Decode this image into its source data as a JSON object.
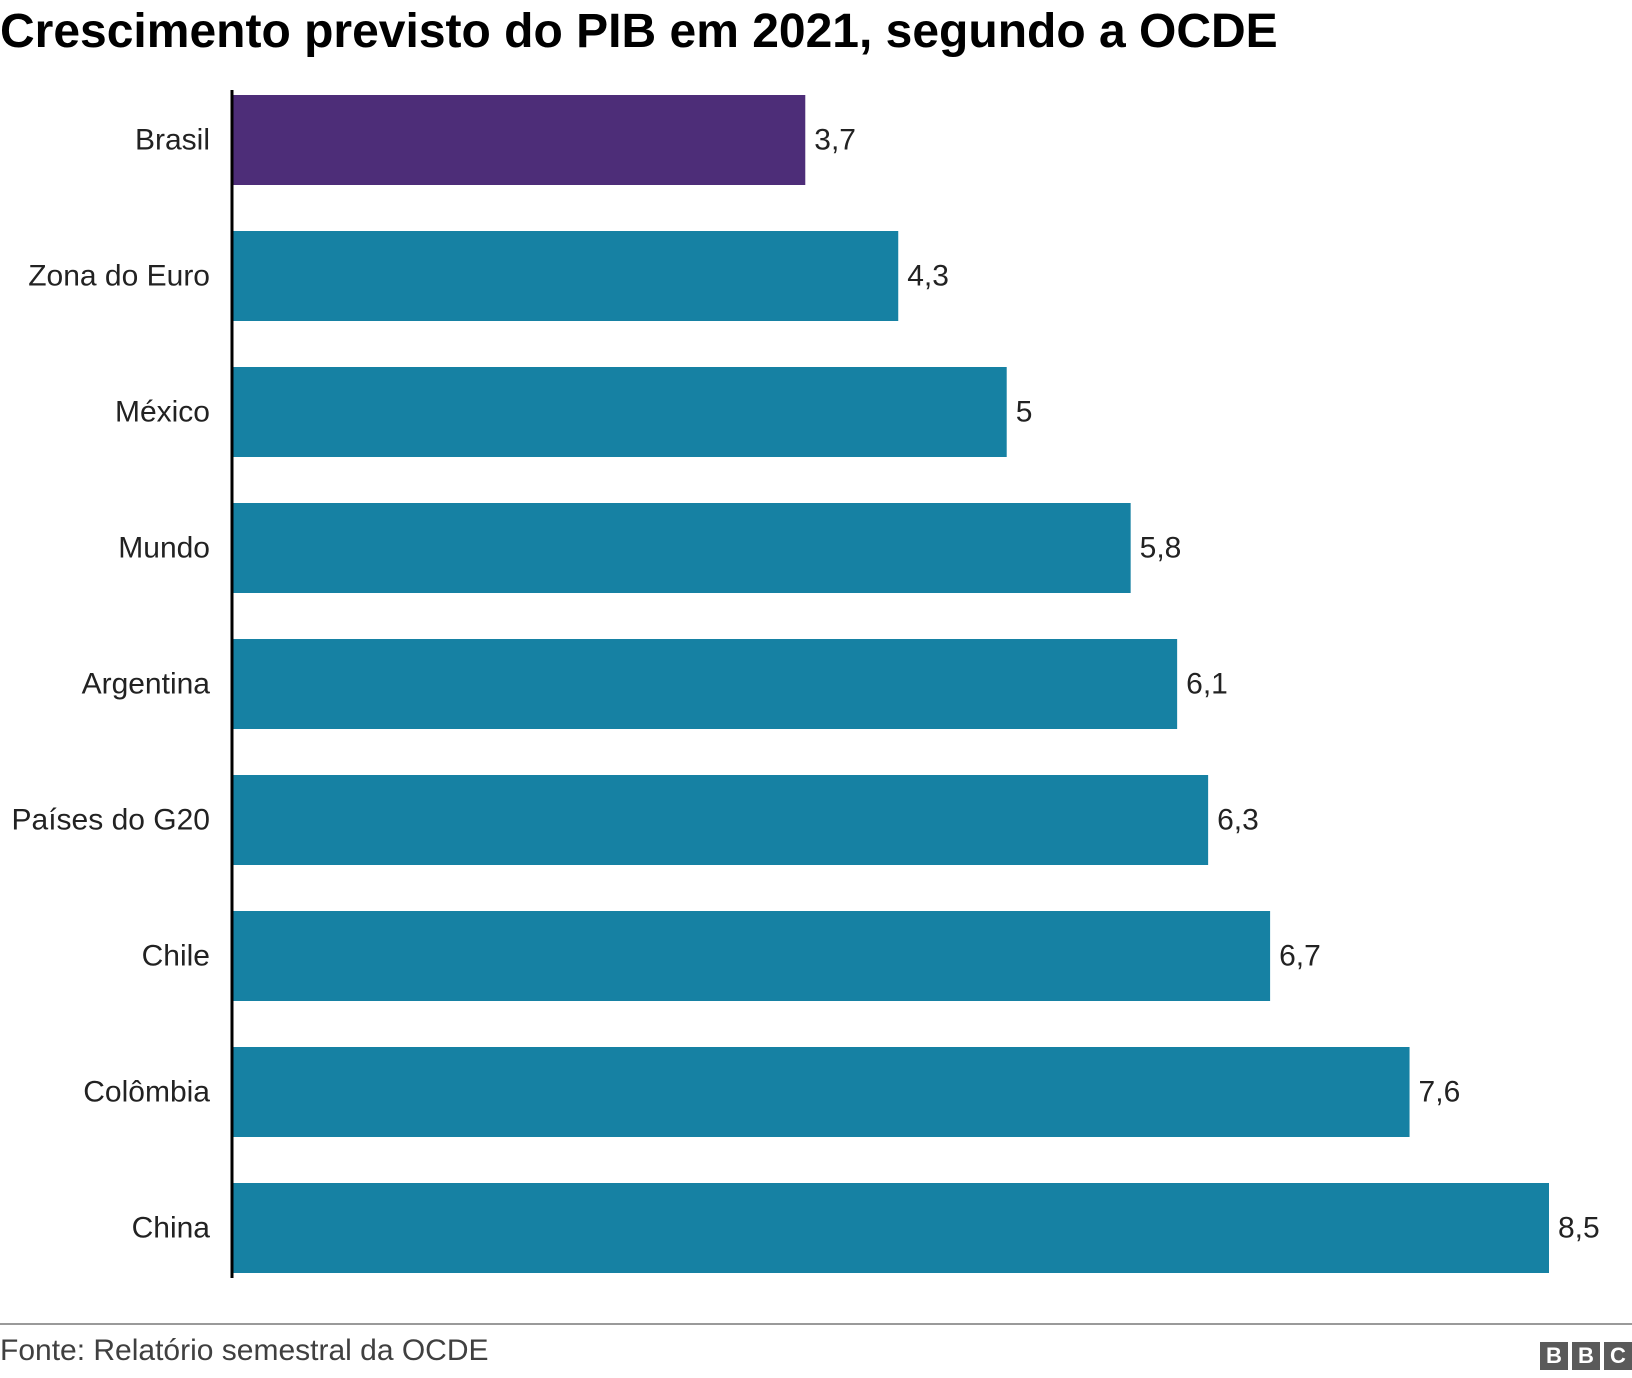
{
  "title": "Crescimento previsto do PIB em 2021, segundo a OCDE",
  "source": "Fonte: Relatório semestral da OCDE",
  "logo": {
    "letters": [
      "B",
      "B",
      "C"
    ]
  },
  "colors": {
    "highlight": "#4d2d78",
    "bar": "#1681a3",
    "axis": "#000000"
  },
  "chart_data": {
    "type": "bar",
    "orientation": "horizontal",
    "categories": [
      "Brasil",
      "Zona do Euro",
      "México",
      "Mundo",
      "Argentina",
      "Países do G20",
      "Chile",
      "Colômbia",
      "China"
    ],
    "values": [
      3.7,
      4.3,
      5,
      5.8,
      6.1,
      6.3,
      6.7,
      7.6,
      8.5
    ],
    "value_labels": [
      "3,7",
      "4,3",
      "5",
      "5,8",
      "6,1",
      "6,3",
      "6,7",
      "7,6",
      "8,5"
    ],
    "highlight": "Brasil",
    "xlim": [
      0,
      8.5
    ],
    "grid": false,
    "title": "Crescimento previsto do PIB em 2021, segundo a OCDE",
    "xlabel": "",
    "ylabel": ""
  }
}
